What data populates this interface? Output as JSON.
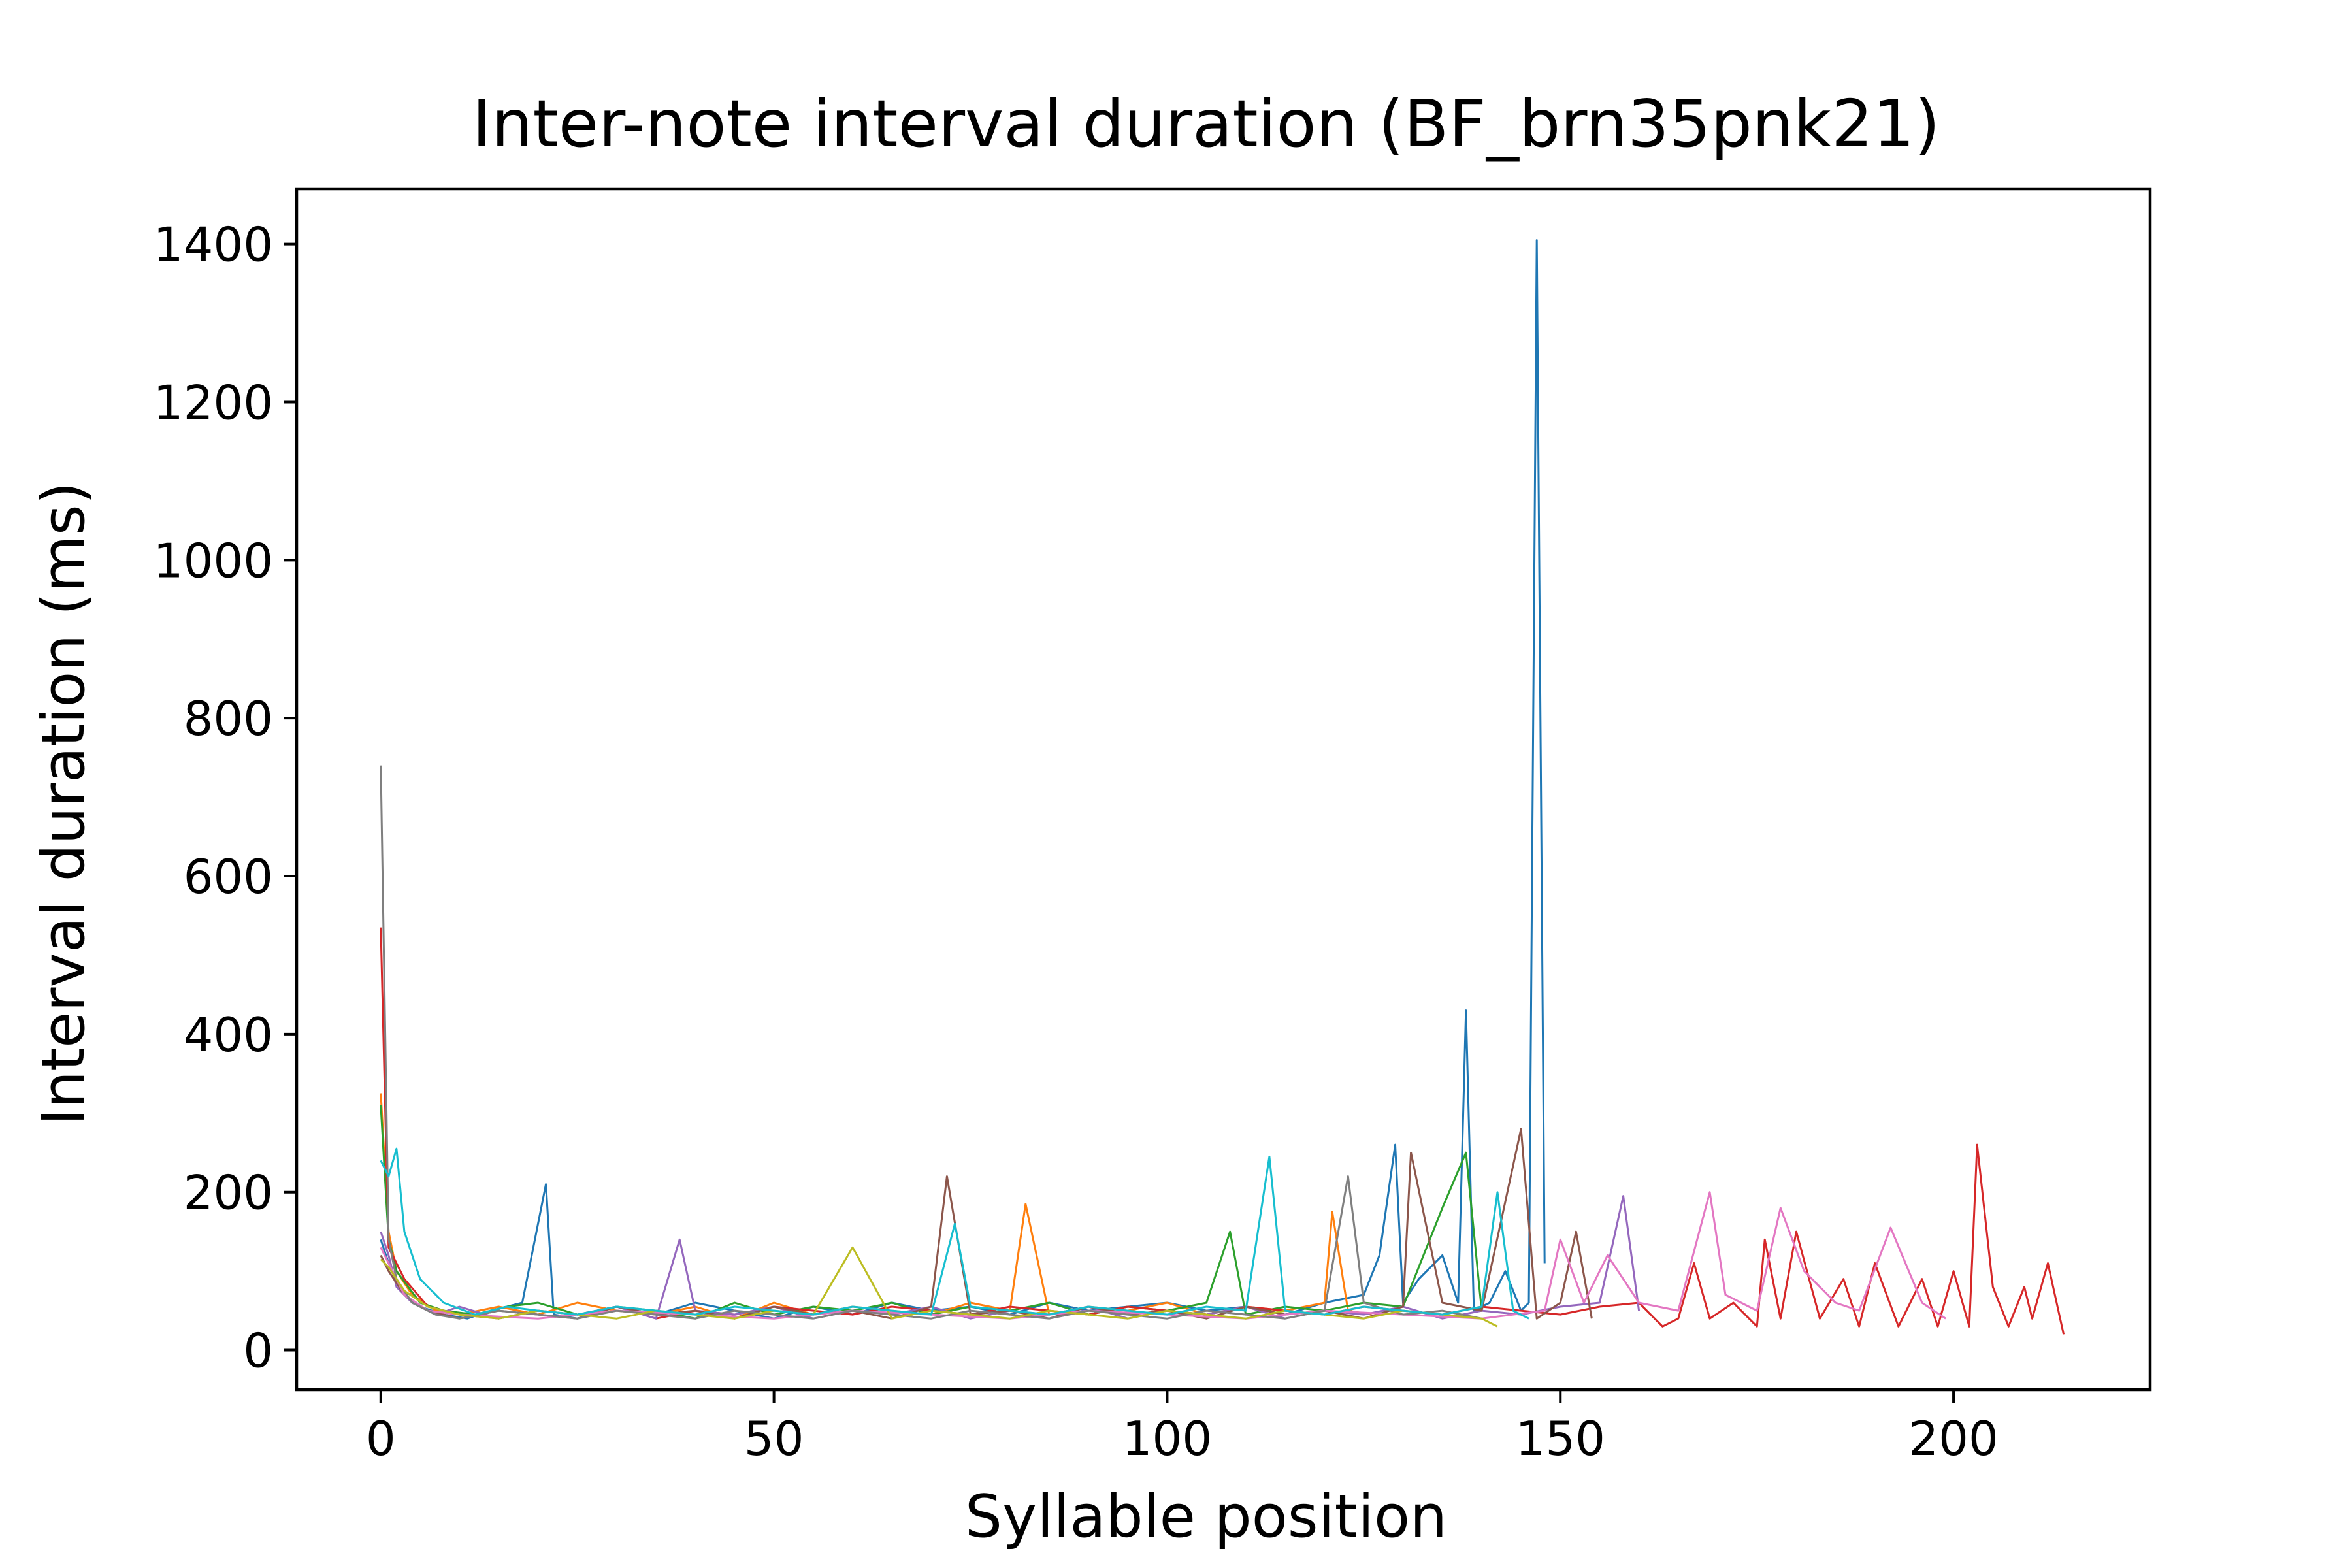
{
  "chart_data": {
    "type": "line",
    "title": "Inter-note interval duration (BF_brn35pnk21)",
    "xlabel": "Syllable position",
    "ylabel": "Interval duration (ms)",
    "xlim": [
      -10.7,
      225
    ],
    "ylim": [
      -50,
      1470
    ],
    "x_ticks": [
      0,
      50,
      100,
      150,
      200
    ],
    "x_tick_labels": [
      "0",
      "50",
      "100",
      "150",
      "200"
    ],
    "y_ticks": [
      0,
      200,
      400,
      600,
      800,
      1000,
      1200,
      1400
    ],
    "y_tick_labels": [
      "0",
      "200",
      "400",
      "600",
      "800",
      "1000",
      "1200",
      "1400"
    ],
    "grid": false,
    "legend": "none",
    "colors": [
      "#1f77b4",
      "#ff7f0e",
      "#2ca02c",
      "#d62728",
      "#9467bd",
      "#8c564b",
      "#e377c2",
      "#7f7f7f",
      "#bcbd22",
      "#17becf"
    ],
    "series": [
      {
        "color": "#1f77b4",
        "x": [
          0,
          1,
          2,
          3,
          5,
          8,
          11,
          14,
          18,
          21,
          22,
          25,
          30,
          35,
          40,
          45,
          50,
          55,
          60,
          65,
          70,
          75,
          80,
          85,
          90,
          95,
          100,
          105,
          110,
          115,
          120,
          125,
          127,
          129,
          130,
          132,
          135,
          137,
          138,
          139,
          141,
          143,
          145,
          146,
          147,
          148
        ],
        "y": [
          140,
          110,
          90,
          70,
          55,
          45,
          40,
          50,
          60,
          210,
          45,
          40,
          55,
          45,
          60,
          50,
          40,
          55,
          45,
          60,
          50,
          55,
          45,
          60,
          50,
          55,
          60,
          50,
          55,
          45,
          60,
          70,
          120,
          260,
          60,
          90,
          120,
          60,
          430,
          50,
          60,
          100,
          50,
          60,
          1405,
          110
        ]
      },
      {
        "color": "#ff7f0e",
        "x": [
          0,
          1,
          2,
          4,
          7,
          10,
          15,
          20,
          25,
          30,
          35,
          40,
          45,
          50,
          55,
          60,
          65,
          70,
          75,
          80,
          82,
          85,
          90,
          95,
          100,
          105,
          110,
          115,
          120,
          121,
          123,
          126
        ],
        "y": [
          325,
          150,
          100,
          70,
          50,
          45,
          55,
          45,
          60,
          50,
          45,
          55,
          40,
          60,
          45,
          55,
          50,
          45,
          60,
          50,
          185,
          45,
          55,
          50,
          60,
          45,
          55,
          50,
          60,
          175,
          50,
          45
        ]
      },
      {
        "color": "#2ca02c",
        "x": [
          0,
          1,
          2,
          5,
          8,
          12,
          16,
          20,
          25,
          30,
          35,
          40,
          45,
          50,
          55,
          60,
          65,
          70,
          75,
          80,
          85,
          90,
          95,
          100,
          105,
          108,
          110,
          115,
          120,
          125,
          130,
          135,
          138,
          140
        ],
        "y": [
          310,
          140,
          100,
          60,
          50,
          45,
          55,
          60,
          45,
          55,
          50,
          40,
          60,
          45,
          55,
          50,
          60,
          45,
          55,
          50,
          60,
          45,
          55,
          50,
          60,
          150,
          45,
          55,
          50,
          60,
          55,
          180,
          250,
          50
        ]
      },
      {
        "color": "#d62728",
        "x": [
          0,
          1,
          3,
          6,
          10,
          15,
          20,
          25,
          30,
          35,
          40,
          45,
          50,
          55,
          60,
          65,
          70,
          75,
          80,
          85,
          90,
          95,
          100,
          105,
          110,
          115,
          120,
          125,
          130,
          135,
          140,
          145,
          150,
          155,
          160,
          163,
          165,
          167,
          169,
          172,
          175,
          176,
          178,
          180,
          183,
          186,
          188,
          190,
          193,
          196,
          198,
          200,
          202,
          203,
          205,
          207,
          209,
          210,
          212,
          214
        ],
        "y": [
          535,
          130,
          90,
          55,
          45,
          40,
          50,
          45,
          55,
          40,
          50,
          45,
          55,
          50,
          45,
          55,
          50,
          45,
          55,
          50,
          45,
          55,
          50,
          45,
          55,
          50,
          45,
          55,
          50,
          45,
          55,
          50,
          45,
          55,
          60,
          30,
          40,
          110,
          40,
          60,
          30,
          140,
          40,
          150,
          40,
          90,
          30,
          110,
          30,
          90,
          30,
          100,
          30,
          260,
          80,
          30,
          80,
          40,
          110,
          20
        ]
      },
      {
        "color": "#9467bd",
        "x": [
          0,
          1,
          2,
          4,
          7,
          10,
          15,
          20,
          25,
          30,
          35,
          38,
          40,
          45,
          50,
          55,
          60,
          65,
          70,
          75,
          80,
          85,
          90,
          95,
          100,
          105,
          110,
          115,
          120,
          125,
          130,
          135,
          140,
          145,
          150,
          155,
          158,
          160
        ],
        "y": [
          150,
          120,
          80,
          60,
          45,
          55,
          40,
          50,
          45,
          55,
          40,
          140,
          50,
          45,
          55,
          40,
          50,
          45,
          55,
          40,
          50,
          45,
          55,
          40,
          50,
          45,
          55,
          40,
          50,
          45,
          55,
          40,
          50,
          45,
          55,
          60,
          195,
          50
        ]
      },
      {
        "color": "#8c564b",
        "x": [
          0,
          1,
          3,
          6,
          10,
          15,
          20,
          25,
          30,
          35,
          40,
          45,
          50,
          55,
          60,
          65,
          70,
          72,
          75,
          80,
          85,
          90,
          95,
          100,
          105,
          110,
          115,
          120,
          125,
          130,
          131,
          135,
          140,
          145,
          147,
          150,
          152,
          154
        ],
        "y": [
          120,
          100,
          70,
          50,
          40,
          50,
          45,
          40,
          55,
          45,
          50,
          40,
          55,
          45,
          50,
          40,
          55,
          220,
          45,
          50,
          40,
          55,
          45,
          50,
          40,
          55,
          45,
          50,
          40,
          55,
          250,
          60,
          50,
          280,
          40,
          60,
          150,
          40
        ]
      },
      {
        "color": "#e377c2",
        "x": [
          0,
          1,
          3,
          6,
          10,
          20,
          30,
          40,
          50,
          60,
          70,
          80,
          90,
          100,
          110,
          120,
          130,
          140,
          148,
          150,
          153,
          156,
          160,
          165,
          169,
          171,
          175,
          178,
          181,
          185,
          188,
          192,
          196,
          199
        ],
        "y": [
          130,
          110,
          70,
          50,
          45,
          40,
          50,
          45,
          40,
          50,
          45,
          40,
          50,
          45,
          40,
          50,
          45,
          40,
          50,
          140,
          60,
          120,
          60,
          50,
          200,
          70,
          50,
          180,
          100,
          60,
          50,
          155,
          60,
          40
        ]
      },
      {
        "color": "#7f7f7f",
        "x": [
          0,
          1,
          2,
          4,
          7,
          10,
          15,
          20,
          25,
          30,
          35,
          40,
          45,
          50,
          55,
          60,
          65,
          70,
          75,
          80,
          85,
          90,
          95,
          100,
          105,
          110,
          115,
          120,
          123,
          125,
          130,
          135,
          140
        ],
        "y": [
          740,
          140,
          90,
          60,
          45,
          40,
          50,
          45,
          40,
          50,
          45,
          40,
          50,
          45,
          40,
          50,
          45,
          40,
          50,
          45,
          40,
          50,
          45,
          40,
          50,
          45,
          40,
          50,
          220,
          60,
          45,
          50,
          40
        ]
      },
      {
        "color": "#bcbd22",
        "x": [
          0,
          1,
          3,
          6,
          10,
          15,
          20,
          25,
          30,
          35,
          40,
          45,
          50,
          55,
          60,
          65,
          70,
          75,
          80,
          85,
          90,
          95,
          100,
          105,
          110,
          115,
          120,
          125,
          130,
          135,
          140,
          142
        ],
        "y": [
          115,
          105,
          75,
          55,
          45,
          40,
          50,
          45,
          40,
          50,
          45,
          40,
          50,
          45,
          130,
          40,
          50,
          45,
          40,
          50,
          45,
          40,
          50,
          45,
          40,
          50,
          45,
          40,
          50,
          45,
          40,
          30
        ]
      },
      {
        "color": "#17becf",
        "x": [
          0,
          1,
          2,
          3,
          5,
          8,
          12,
          16,
          20,
          25,
          30,
          35,
          40,
          45,
          50,
          55,
          60,
          65,
          70,
          73,
          75,
          80,
          85,
          90,
          95,
          100,
          105,
          110,
          113,
          115,
          120,
          125,
          130,
          135,
          140,
          142,
          144,
          146
        ],
        "y": [
          240,
          220,
          255,
          150,
          90,
          60,
          45,
          55,
          50,
          45,
          55,
          50,
          45,
          55,
          50,
          45,
          55,
          50,
          45,
          160,
          55,
          50,
          45,
          55,
          50,
          45,
          55,
          50,
          245,
          50,
          45,
          55,
          50,
          45,
          55,
          200,
          50,
          40
        ]
      }
    ]
  }
}
